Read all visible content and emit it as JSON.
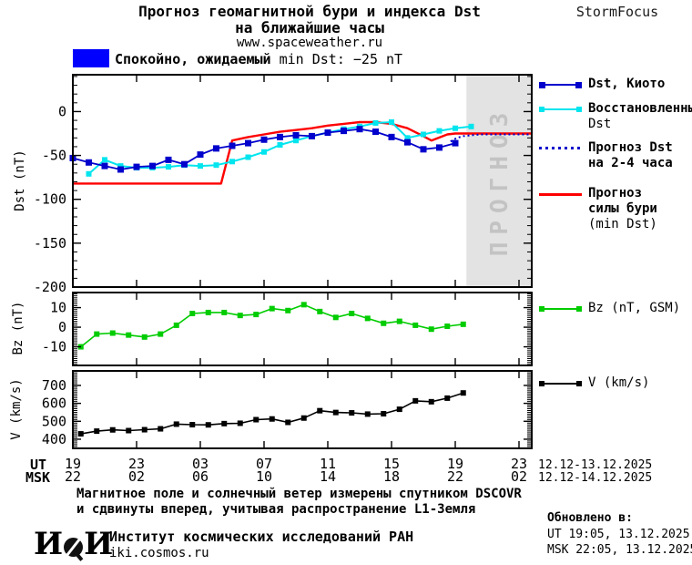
{
  "header": {
    "title_line1": "Прогноз геомагнитной бури и индекса Dst",
    "title_line2": "на ближайшие часы",
    "site": "www.spaceweather.ru",
    "brand": "StormFocus"
  },
  "banner": {
    "status_ru": "Спокойно, ожидаемый",
    "status_en": "min Dst: −25 nT",
    "swatch_color": "#0000ff"
  },
  "legend": {
    "dst_kyoto": {
      "label": "Dst, Киото",
      "color": "#0000cc"
    },
    "restored": {
      "line1": "Восстановленный",
      "line2": "Dst",
      "color": "#00e5ee"
    },
    "forecast_dst": {
      "line1": "Прогноз Dst",
      "line2": "на 2-4 часа",
      "color": "#0000cc"
    },
    "forecast_storm": {
      "line1": "Прогноз",
      "line2": "силы бури",
      "line3": "(min Dst)",
      "color": "#ff0000"
    },
    "bz": {
      "label": "Bz (nT, GSM)",
      "color": "#00cc00"
    },
    "v": {
      "label": "V (km/s)",
      "color": "#000000"
    }
  },
  "xaxis_labels": {
    "row1_label": "UT",
    "row2_label": "MSK",
    "date_range_1": "12.12-13.12.2025",
    "date_range_2": "12.12-14.12.2025"
  },
  "footer": {
    "note_line1": "Магнитное поле и солнечный ветер измерены спутником DSCOVR",
    "note_line2": "и сдвинуты вперед, учитывая распространение L1-Земля",
    "logo_left": "И",
    "logo_right": "И",
    "org": "Институт космических исследований РАН",
    "site": "iki.cosmos.ru",
    "updated_label": "Обновлено в:",
    "updated_ut": "UT  19:05, 13.12.2025",
    "updated_msk": "MSK 22:05, 13.12.2025"
  },
  "chart_data": {
    "type": "line",
    "x_unit": "hour UT starting 19:00 12.12.2025 (values >24 are next day)",
    "xlim": [
      19,
      47.8
    ],
    "grid": false,
    "legend_position": "right",
    "xticks": {
      "hours": [
        19,
        23,
        27,
        31,
        35,
        39,
        43,
        47
      ],
      "ut": [
        "19",
        "23",
        "03",
        "07",
        "11",
        "15",
        "19",
        "23"
      ],
      "msk": [
        "22",
        "02",
        "06",
        "10",
        "14",
        "18",
        "22",
        "02"
      ]
    },
    "forecast_region": {
      "x_start": 43.7,
      "x_end": 47.8,
      "fill": "#e3e3e3",
      "label": "ПРОГНОЗ",
      "label_color": "#c3c3c3"
    },
    "panels": [
      {
        "id": "dst",
        "ylabel": "Dst (nT)",
        "ylim": [
          -200,
          42
        ],
        "yticks": [
          0,
          -50,
          -100,
          -150,
          -200
        ],
        "minor_step": 10,
        "series": [
          {
            "name": "Прогноз силы бури (min Dst)",
            "color": "#ff0000",
            "width": 2.4,
            "marker": null,
            "x": [
              19,
              28.3,
              29,
              30,
              31,
              32,
              33,
              34,
              35,
              36,
              37,
              38,
              39,
              40,
              41,
              41.5,
              42.5,
              43,
              47.8
            ],
            "y": [
              -82,
              -82,
              -33,
              -29,
              -26,
              -23,
              -21,
              -19,
              -16,
              -14,
              -12,
              -12,
              -14,
              -19,
              -28,
              -33,
              -26,
              -25,
              -25
            ]
          },
          {
            "name": "Восстановленный Dst",
            "color": "#00e5ee",
            "width": 2,
            "marker": "square",
            "marker_size": 6,
            "x": [
              20,
              21,
              22,
              23,
              24,
              25,
              26,
              27,
              28,
              29,
              30,
              31,
              32,
              33,
              34,
              35,
              36,
              37,
              38,
              39,
              40,
              41,
              42,
              43,
              44
            ],
            "y": [
              -71,
              -55,
              -62,
              -64,
              -64,
              -63,
              -61,
              -62,
              -61,
              -57,
              -52,
              -46,
              -38,
              -33,
              -28,
              -24,
              -20,
              -17,
              -13,
              -12,
              -30,
              -26,
              -22,
              -19,
              -17
            ]
          },
          {
            "name": "Прогноз Dst на 2-4 часа",
            "color": "#0000cc",
            "width": 2,
            "dash": "2 3",
            "marker": null,
            "x": [
              42.7,
              43.1,
              43.5,
              44,
              44.6,
              45.2,
              46,
              46.6,
              47.3,
              47.8
            ],
            "y": [
              -34,
              -30,
              -28,
              -27,
              -26,
              -26,
              -26,
              -26,
              -26,
              -26
            ]
          },
          {
            "name": "Dst, Киото",
            "color": "#0000cc",
            "width": 1.8,
            "marker": "square",
            "marker_size": 7,
            "x": [
              19,
              20,
              21,
              22,
              23,
              24,
              25,
              26,
              27,
              28,
              29,
              30,
              31,
              32,
              33,
              34,
              35,
              36,
              37,
              38,
              39,
              40,
              41,
              42,
              43
            ],
            "y": [
              -53,
              -58,
              -62,
              -66,
              -63,
              -62,
              -55,
              -60,
              -49,
              -42,
              -39,
              -36,
              -32,
              -29,
              -27,
              -28,
              -24,
              -22,
              -20,
              -23,
              -29,
              -35,
              -43,
              -41,
              -36
            ]
          }
        ]
      },
      {
        "id": "bz",
        "ylabel": "Bz (nT)",
        "ylim": [
          -19.5,
          17.7
        ],
        "yticks": [
          10,
          0,
          -10
        ],
        "minor_step": 1,
        "series": [
          {
            "name": "Bz (nT, GSM)",
            "color": "#00cc00",
            "width": 1.6,
            "marker": "square",
            "marker_size": 6,
            "x": [
              19.5,
              20.5,
              21.5,
              22.5,
              23.5,
              24.5,
              25.5,
              26.5,
              27.5,
              28.5,
              29.5,
              30.5,
              31.5,
              32.5,
              33.5,
              34.5,
              35.5,
              36.5,
              37.5,
              38.5,
              39.5,
              40.5,
              41.5,
              42.5,
              43.5
            ],
            "y": [
              -10,
              -3.5,
              -3,
              -4,
              -5,
              -3.5,
              1,
              7,
              7.5,
              7.5,
              6,
              6.5,
              9.5,
              8.5,
              11.5,
              8,
              5,
              7,
              4.5,
              2,
              3,
              1,
              -1,
              0.5,
              1.5
            ]
          }
        ]
      },
      {
        "id": "v",
        "ylabel": "V (km/s)",
        "ylim": [
          349,
          781
        ],
        "yticks": [
          700,
          600,
          500,
          400
        ],
        "minor_step": 10,
        "series": [
          {
            "name": "V (km/s)",
            "color": "#000000",
            "width": 1.6,
            "marker": "square",
            "marker_size": 6,
            "x": [
              19.5,
              20.5,
              21.5,
              22.5,
              23.5,
              24.5,
              25.5,
              26.5,
              27.5,
              28.5,
              29.5,
              30.5,
              31.5,
              32.5,
              33.5,
              34.5,
              35.5,
              36.5,
              37.5,
              38.5,
              39.5,
              40.5,
              41.5,
              42.5,
              43.5
            ],
            "y": [
              430,
              445,
              452,
              448,
              453,
              458,
              484,
              481,
              480,
              487,
              489,
              509,
              513,
              494,
              518,
              559,
              549,
              547,
              540,
              542,
              567,
              614,
              609,
              629,
              658
            ]
          }
        ]
      }
    ]
  }
}
